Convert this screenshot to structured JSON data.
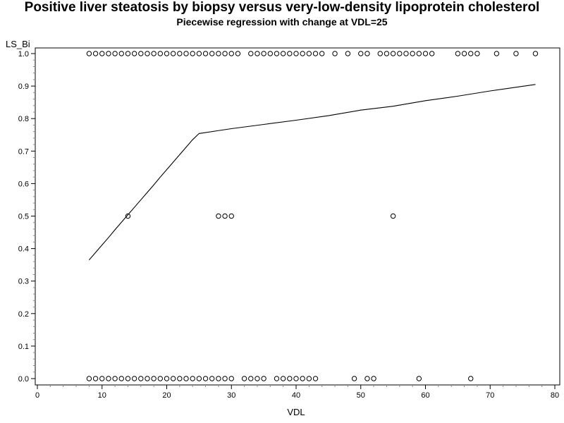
{
  "chart_data": {
    "type": "scatter",
    "title": "Positive liver steatosis by biopsy versus very-low-density lipoprotein cholesterol",
    "subtitle": "Piecewise regression with change at VDL=25",
    "xlabel": "VDL",
    "ylabel": "LS_Bi",
    "xlim": [
      0,
      80
    ],
    "ylim": [
      0,
      1
    ],
    "x_ticks": [
      0,
      10,
      20,
      30,
      40,
      50,
      60,
      70,
      80
    ],
    "y_ticks": [
      0.0,
      0.1,
      0.2,
      0.3,
      0.4,
      0.5,
      0.6,
      0.7,
      0.8,
      0.9,
      1.0
    ],
    "y_tick_labels": [
      "0.0",
      "0.1",
      "0.2",
      "0.3",
      "0.4",
      "0.5",
      "0.6",
      "0.7",
      "0.8",
      "0.9",
      "1.0"
    ],
    "grid": false,
    "breakpoint": 25,
    "series": [
      {
        "kind": "points",
        "marker": "open-circle",
        "points": [
          [
            8,
            1
          ],
          [
            9,
            1
          ],
          [
            10,
            1
          ],
          [
            11,
            1
          ],
          [
            12,
            1
          ],
          [
            13,
            1
          ],
          [
            14,
            1
          ],
          [
            15,
            1
          ],
          [
            16,
            1
          ],
          [
            17,
            1
          ],
          [
            18,
            1
          ],
          [
            19,
            1
          ],
          [
            20,
            1
          ],
          [
            21,
            1
          ],
          [
            22,
            1
          ],
          [
            23,
            1
          ],
          [
            24,
            1
          ],
          [
            25,
            1
          ],
          [
            26,
            1
          ],
          [
            27,
            1
          ],
          [
            28,
            1
          ],
          [
            29,
            1
          ],
          [
            30,
            1
          ],
          [
            31,
            1
          ],
          [
            33,
            1
          ],
          [
            34,
            1
          ],
          [
            35,
            1
          ],
          [
            36,
            1
          ],
          [
            37,
            1
          ],
          [
            38,
            1
          ],
          [
            39,
            1
          ],
          [
            40,
            1
          ],
          [
            41,
            1
          ],
          [
            42,
            1
          ],
          [
            43,
            1
          ],
          [
            44,
            1
          ],
          [
            46,
            1
          ],
          [
            48,
            1
          ],
          [
            50,
            1
          ],
          [
            51,
            1
          ],
          [
            53,
            1
          ],
          [
            54,
            1
          ],
          [
            55,
            1
          ],
          [
            56,
            1
          ],
          [
            57,
            1
          ],
          [
            58,
            1
          ],
          [
            59,
            1
          ],
          [
            60,
            1
          ],
          [
            61,
            1
          ],
          [
            65,
            1
          ],
          [
            66,
            1
          ],
          [
            67,
            1
          ],
          [
            68,
            1
          ],
          [
            71,
            1
          ],
          [
            74,
            1
          ],
          [
            77,
            1
          ],
          [
            14,
            0.5
          ],
          [
            28,
            0.5
          ],
          [
            29,
            0.5
          ],
          [
            30,
            0.5
          ],
          [
            55,
            0.5
          ],
          [
            8,
            0
          ],
          [
            9,
            0
          ],
          [
            10,
            0
          ],
          [
            11,
            0
          ],
          [
            12,
            0
          ],
          [
            13,
            0
          ],
          [
            14,
            0
          ],
          [
            15,
            0
          ],
          [
            16,
            0
          ],
          [
            17,
            0
          ],
          [
            18,
            0
          ],
          [
            19,
            0
          ],
          [
            20,
            0
          ],
          [
            21,
            0
          ],
          [
            22,
            0
          ],
          [
            23,
            0
          ],
          [
            24,
            0
          ],
          [
            25,
            0
          ],
          [
            26,
            0
          ],
          [
            27,
            0
          ],
          [
            28,
            0
          ],
          [
            29,
            0
          ],
          [
            30,
            0
          ],
          [
            32,
            0
          ],
          [
            33,
            0
          ],
          [
            34,
            0
          ],
          [
            35,
            0
          ],
          [
            37,
            0
          ],
          [
            38,
            0
          ],
          [
            39,
            0
          ],
          [
            40,
            0
          ],
          [
            41,
            0
          ],
          [
            42,
            0
          ],
          [
            43,
            0
          ],
          [
            49,
            0
          ],
          [
            51,
            0
          ],
          [
            52,
            0
          ],
          [
            59,
            0
          ],
          [
            67,
            0
          ]
        ]
      },
      {
        "kind": "line",
        "points": [
          [
            8,
            0.365
          ],
          [
            9,
            0.388
          ],
          [
            10,
            0.411
          ],
          [
            11,
            0.434
          ],
          [
            12,
            0.458
          ],
          [
            13,
            0.481
          ],
          [
            14,
            0.504
          ],
          [
            15,
            0.527
          ],
          [
            16,
            0.55
          ],
          [
            17,
            0.573
          ],
          [
            18,
            0.596
          ],
          [
            19,
            0.62
          ],
          [
            20,
            0.643
          ],
          [
            21,
            0.666
          ],
          [
            22,
            0.689
          ],
          [
            23,
            0.712
          ],
          [
            24,
            0.735
          ],
          [
            25,
            0.754
          ],
          [
            28,
            0.763
          ],
          [
            30,
            0.769
          ],
          [
            35,
            0.782
          ],
          [
            40,
            0.795
          ],
          [
            45,
            0.809
          ],
          [
            50,
            0.826
          ],
          [
            55,
            0.838
          ],
          [
            60,
            0.855
          ],
          [
            65,
            0.869
          ],
          [
            70,
            0.885
          ],
          [
            77,
            0.905
          ]
        ]
      }
    ]
  }
}
